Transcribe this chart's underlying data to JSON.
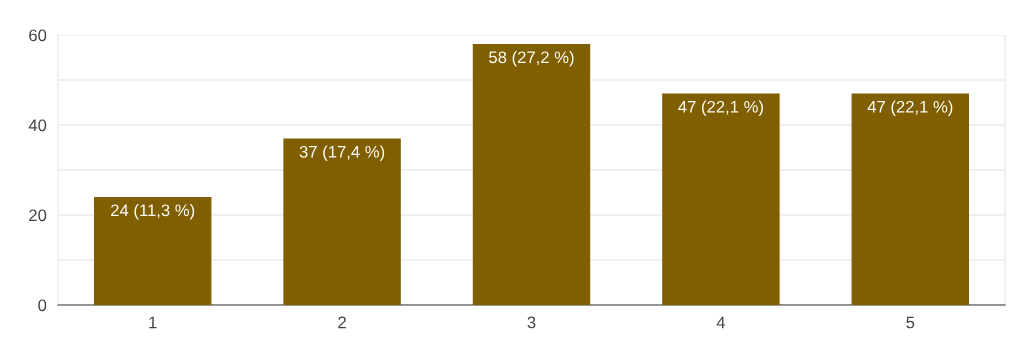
{
  "chart_data": {
    "type": "bar",
    "categories": [
      "1",
      "2",
      "3",
      "4",
      "5"
    ],
    "values": [
      24,
      37,
      58,
      47,
      47
    ],
    "value_labels": [
      "24 (11,3 %)",
      "37 (17,4 %)",
      "58 (27,2 %)",
      "47 (22,1 %)",
      "47 (22,1 %)"
    ],
    "color": "#7f5f00",
    "ylim": [
      0,
      60
    ],
    "yticks": [
      0,
      {
        "value": 10,
        "label": null
      },
      20,
      {
        "value": 30,
        "label": null
      },
      40,
      {
        "value": 50,
        "label": null
      },
      60
    ],
    "grid": "y"
  }
}
